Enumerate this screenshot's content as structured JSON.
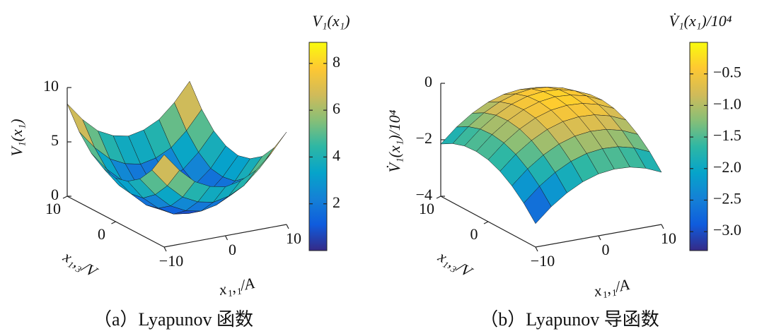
{
  "chart_data": [
    {
      "type": "surface",
      "zlabel": "V₁(x₁)",
      "xlabel": "x₁,₁/A",
      "ylabel": "x₁,₃/V",
      "colorbar_title": "V₁(x₁)",
      "caption": "（a）Lyapunov 函数",
      "x": [
        -10,
        -7.5,
        -5,
        -2.5,
        0,
        2.5,
        5,
        7.5,
        10
      ],
      "y": [
        -10,
        -7.5,
        -5,
        -2.5,
        0,
        2.5,
        5,
        7.5,
        10
      ],
      "z": [
        [
          8.5,
          6.8,
          5.5,
          4.8,
          4.5,
          4.8,
          5.5,
          6.8,
          8.5
        ],
        [
          6.5,
          4.8,
          3.5,
          2.8,
          2.5,
          2.8,
          3.5,
          4.8,
          6.5
        ],
        [
          5.1,
          3.4,
          2.1,
          1.4,
          1.1,
          1.4,
          2.1,
          3.4,
          5.1
        ],
        [
          4.3,
          2.5,
          1.3,
          0.5,
          0.3,
          0.5,
          1.3,
          2.5,
          4.3
        ],
        [
          4.0,
          2.3,
          1.0,
          0.3,
          0,
          0.3,
          1.0,
          2.3,
          4.0
        ],
        [
          4.3,
          2.5,
          1.3,
          0.5,
          0.3,
          0.5,
          1.3,
          2.5,
          4.3
        ],
        [
          5.1,
          3.4,
          2.1,
          1.4,
          1.1,
          1.4,
          2.1,
          3.4,
          5.1
        ],
        [
          6.5,
          4.8,
          3.5,
          2.8,
          2.5,
          2.8,
          3.5,
          4.8,
          6.5
        ],
        [
          8.5,
          6.8,
          5.5,
          4.8,
          4.5,
          4.8,
          5.5,
          6.8,
          8.5
        ]
      ],
      "xlim": [
        -10,
        10
      ],
      "ylim": [
        -10,
        10
      ],
      "zlim": [
        0,
        10
      ],
      "xticks": [
        {
          "value": -10,
          "label": "−10"
        },
        0,
        10
      ],
      "yticks": [
        0,
        10
      ],
      "zticks": [
        0,
        5,
        10
      ],
      "clim": [
        0,
        8.9
      ],
      "cticks": [
        2,
        4,
        6,
        8
      ],
      "colormap": [
        "#352a87",
        "#0f5cdd",
        "#1481d6",
        "#06a4ca",
        "#2eb7a4",
        "#87bf77",
        "#d1bb59",
        "#fec832",
        "#f9fb0e"
      ]
    },
    {
      "type": "surface",
      "zlabel": "V̇₁(x₁)/10⁴",
      "xlabel": "x₁,₁/A",
      "ylabel": "x₁,₃/V",
      "colorbar_title": "V̇₁(x₁)/10⁴",
      "caption": "（b）Lyapunov 导函数",
      "x": [
        -10,
        -7.5,
        -5,
        -2.5,
        0,
        2.5,
        5,
        7.5,
        10
      ],
      "y": [
        -10,
        -7.5,
        -5,
        -2.5,
        0,
        2.5,
        5,
        7.5,
        10
      ],
      "z": [
        [
          -3.17,
          -2.67,
          -2.28,
          -1.99,
          -1.81,
          -1.74,
          -1.77,
          -1.91,
          -2.15
        ],
        [
          -2.67,
          -2.17,
          -1.78,
          -1.49,
          -1.31,
          -1.24,
          -1.27,
          -1.41,
          -1.65
        ],
        [
          -2.28,
          -1.78,
          -1.39,
          -1.1,
          -0.92,
          -0.85,
          -0.88,
          -1.02,
          -1.26
        ],
        [
          -1.99,
          -1.49,
          -1.1,
          -0.81,
          -0.63,
          -0.56,
          -0.59,
          -0.73,
          -0.97
        ],
        [
          -1.81,
          -1.31,
          -0.92,
          -0.63,
          -0.45,
          -0.38,
          -0.41,
          -0.55,
          -0.79
        ],
        [
          -1.74,
          -1.24,
          -0.85,
          -0.56,
          -0.38,
          -0.3,
          -0.34,
          -0.47,
          -0.72
        ],
        [
          -1.77,
          -1.27,
          -0.88,
          -0.59,
          -0.41,
          -0.34,
          -0.37,
          -0.51,
          -0.75
        ],
        [
          -1.91,
          -1.41,
          -1.02,
          -0.73,
          -0.55,
          -0.47,
          -0.51,
          -0.64,
          -0.89
        ],
        [
          -2.15,
          -1.65,
          -1.26,
          -0.97,
          -0.79,
          -0.72,
          -0.75,
          -0.89,
          -1.13
        ]
      ],
      "xlim": [
        -10,
        10
      ],
      "ylim": [
        -10,
        10
      ],
      "zlim": [
        -4,
        0
      ],
      "xticks": [
        {
          "value": -10,
          "label": "−10"
        },
        0,
        10
      ],
      "yticks": [
        0,
        10
      ],
      "zticks": [
        {
          "value": -4,
          "label": "−4"
        },
        {
          "value": -2,
          "label": "−2"
        },
        0
      ],
      "clim": [
        -3.3,
        0
      ],
      "cticks": [
        {
          "value": -3.0,
          "label": "−3.0"
        },
        {
          "value": -2.5,
          "label": "−2.5"
        },
        {
          "value": -2.0,
          "label": "−2.0"
        },
        {
          "value": -1.5,
          "label": "−1.5"
        },
        {
          "value": -1.0,
          "label": "−1.0"
        },
        {
          "value": -0.5,
          "label": "−0.5"
        }
      ],
      "colormap": [
        "#352a87",
        "#0f5cdd",
        "#1481d6",
        "#06a4ca",
        "#2eb7a4",
        "#87bf77",
        "#d1bb59",
        "#fec832",
        "#f9fb0e"
      ]
    }
  ]
}
